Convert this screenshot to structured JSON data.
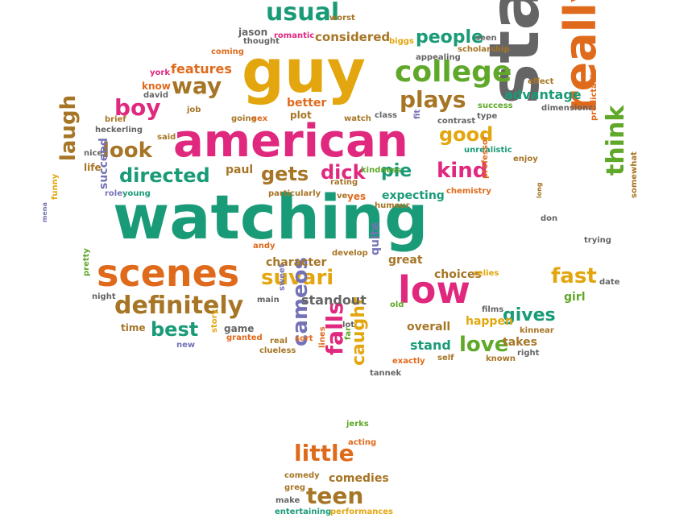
{
  "colors": {
    "green": "#1a9b78",
    "pink": "#e0287e",
    "orange": "#e06a1c",
    "yellow": "#e3a60e",
    "gray": "#656565",
    "lime": "#5fa829",
    "brown": "#a67525",
    "purple": "#7472b6"
  },
  "words": [
    {
      "text": "watching",
      "color": "green"
    },
    {
      "text": "american",
      "color": "pink"
    },
    {
      "text": "guy",
      "color": "yellow"
    },
    {
      "text": "stars",
      "color": "gray"
    },
    {
      "text": "really",
      "color": "orange"
    },
    {
      "text": "scenes",
      "color": "orange"
    },
    {
      "text": "low",
      "color": "pink"
    },
    {
      "text": "college",
      "color": "lime"
    },
    {
      "text": "definitely",
      "color": "brown"
    },
    {
      "text": "usual",
      "color": "green"
    },
    {
      "text": "way",
      "color": "brown"
    },
    {
      "text": "boy",
      "color": "pink"
    },
    {
      "text": "look",
      "color": "brown"
    },
    {
      "text": "directed",
      "color": "green"
    },
    {
      "text": "plays",
      "color": "brown"
    },
    {
      "text": "good",
      "color": "yellow"
    },
    {
      "text": "kind",
      "color": "pink"
    },
    {
      "text": "think",
      "color": "lime"
    },
    {
      "text": "suvari",
      "color": "yellow"
    },
    {
      "text": "gets",
      "color": "brown"
    },
    {
      "text": "dick",
      "color": "pink"
    },
    {
      "text": "pie",
      "color": "green"
    },
    {
      "text": "laugh",
      "color": "brown"
    },
    {
      "text": "best",
      "color": "green"
    },
    {
      "text": "love",
      "color": "lime"
    },
    {
      "text": "fast",
      "color": "yellow"
    },
    {
      "text": "gives",
      "color": "green"
    },
    {
      "text": "little",
      "color": "orange"
    },
    {
      "text": "teen",
      "color": "brown"
    },
    {
      "text": "cameos",
      "color": "purple"
    },
    {
      "text": "falls",
      "color": "pink"
    },
    {
      "text": "caught",
      "color": "yellow"
    },
    {
      "text": "people",
      "color": "green"
    },
    {
      "text": "advantage",
      "color": "green"
    },
    {
      "text": "features",
      "color": "orange"
    },
    {
      "text": "considered",
      "color": "brown"
    },
    {
      "text": "expecting",
      "color": "green"
    },
    {
      "text": "character",
      "color": "brown"
    },
    {
      "text": "standout",
      "color": "gray"
    },
    {
      "text": "choices",
      "color": "brown"
    },
    {
      "text": "great",
      "color": "brown"
    },
    {
      "text": "quite",
      "color": "purple"
    },
    {
      "text": "overall",
      "color": "brown"
    },
    {
      "text": "stand",
      "color": "green"
    },
    {
      "text": "takes",
      "color": "brown"
    },
    {
      "text": "happen",
      "color": "yellow"
    },
    {
      "text": "girl",
      "color": "lime"
    },
    {
      "text": "succeed",
      "color": "purple"
    },
    {
      "text": "comedies",
      "color": "brown"
    },
    {
      "text": "paul",
      "color": "brown"
    },
    {
      "text": "better",
      "color": "orange"
    },
    {
      "text": "jason",
      "color": "gray"
    },
    {
      "text": "thought",
      "color": "gray"
    },
    {
      "text": "romantic",
      "color": "pink"
    },
    {
      "text": "worst",
      "color": "brown"
    },
    {
      "text": "coming",
      "color": "orange"
    },
    {
      "text": "biggs",
      "color": "yellow"
    },
    {
      "text": "seen",
      "color": "gray"
    },
    {
      "text": "appealing",
      "color": "gray"
    },
    {
      "text": "scholarship",
      "color": "brown"
    },
    {
      "text": "effect",
      "color": "brown"
    },
    {
      "text": "york",
      "color": "pink"
    },
    {
      "text": "know",
      "color": "orange"
    },
    {
      "text": "david",
      "color": "gray"
    },
    {
      "text": "job",
      "color": "brown"
    },
    {
      "text": "brief",
      "color": "brown"
    },
    {
      "text": "heckerling",
      "color": "gray"
    },
    {
      "text": "said",
      "color": "brown"
    },
    {
      "text": "nice",
      "color": "gray"
    },
    {
      "text": "life",
      "color": "brown"
    },
    {
      "text": "role",
      "color": "purple"
    },
    {
      "text": "young",
      "color": "green"
    },
    {
      "text": "funny",
      "color": "yellow"
    },
    {
      "text": "mena",
      "color": "purple"
    },
    {
      "text": "pretty",
      "color": "lime"
    },
    {
      "text": "night",
      "color": "gray"
    },
    {
      "text": "time",
      "color": "brown"
    },
    {
      "text": "new",
      "color": "purple"
    },
    {
      "text": "story",
      "color": "yellow"
    },
    {
      "text": "game",
      "color": "gray"
    },
    {
      "text": "granted",
      "color": "orange"
    },
    {
      "text": "real",
      "color": "brown"
    },
    {
      "text": "clueless",
      "color": "brown"
    },
    {
      "text": "sort",
      "color": "orange"
    },
    {
      "text": "lines",
      "color": "orange"
    },
    {
      "text": "main",
      "color": "gray"
    },
    {
      "text": "sweet",
      "color": "purple"
    },
    {
      "text": "andy",
      "color": "orange"
    },
    {
      "text": "develop",
      "color": "brown"
    },
    {
      "text": "particularly",
      "color": "brown"
    },
    {
      "text": "rating",
      "color": "brown"
    },
    {
      "text": "ve",
      "color": "brown"
    },
    {
      "text": "yes",
      "color": "orange"
    },
    {
      "text": "kindness",
      "color": "lime"
    },
    {
      "text": "humour",
      "color": "brown"
    },
    {
      "text": "chemistry",
      "color": "orange"
    },
    {
      "text": "plot",
      "color": "brown"
    },
    {
      "text": "going",
      "color": "brown"
    },
    {
      "text": "sex",
      "color": "orange"
    },
    {
      "text": "watch",
      "color": "brown"
    },
    {
      "text": "class",
      "color": "gray"
    },
    {
      "text": "fit",
      "color": "purple"
    },
    {
      "text": "contrast",
      "color": "gray"
    },
    {
      "text": "type",
      "color": "gray"
    },
    {
      "text": "success",
      "color": "lime"
    },
    {
      "text": "dimensional",
      "color": "gray"
    },
    {
      "text": "unrealistic",
      "color": "green"
    },
    {
      "text": "enjoy",
      "color": "brown"
    },
    {
      "text": "predictable",
      "color": "orange"
    },
    {
      "text": "professor",
      "color": "orange"
    },
    {
      "text": "long",
      "color": "brown"
    },
    {
      "text": "don",
      "color": "gray"
    },
    {
      "text": "trying",
      "color": "gray"
    },
    {
      "text": "somewhat",
      "color": "brown"
    },
    {
      "text": "date",
      "color": "gray"
    },
    {
      "text": "relies",
      "color": "yellow"
    },
    {
      "text": "old",
      "color": "lime"
    },
    {
      "text": "films",
      "color": "gray"
    },
    {
      "text": "kinnear",
      "color": "brown"
    },
    {
      "text": "lot",
      "color": "gray"
    },
    {
      "text": "far",
      "color": "lime"
    },
    {
      "text": "exactly",
      "color": "orange"
    },
    {
      "text": "self",
      "color": "brown"
    },
    {
      "text": "known",
      "color": "brown"
    },
    {
      "text": "right",
      "color": "gray"
    },
    {
      "text": "tannek",
      "color": "gray"
    },
    {
      "text": "jerks",
      "color": "lime"
    },
    {
      "text": "acting",
      "color": "orange"
    },
    {
      "text": "comedy",
      "color": "brown"
    },
    {
      "text": "greg",
      "color": "brown"
    },
    {
      "text": "make",
      "color": "gray"
    },
    {
      "text": "entertaining",
      "color": "green"
    },
    {
      "text": "performances",
      "color": "yellow"
    }
  ]
}
